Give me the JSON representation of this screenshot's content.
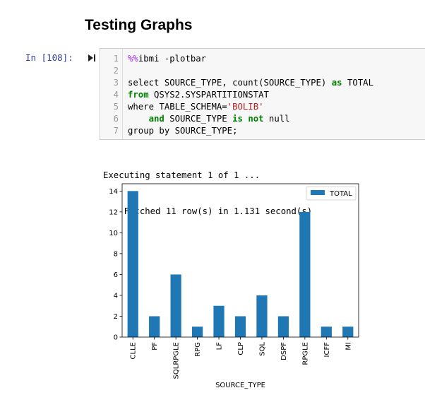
{
  "notebook": {
    "heading": "Testing Graphs",
    "prompt": "In [108]:",
    "code_lines": [
      {
        "num": "1",
        "parts": [
          {
            "t": "%%",
            "c": "magic"
          },
          {
            "t": "ibmi -plotbar",
            "c": ""
          }
        ]
      },
      {
        "num": "2",
        "parts": []
      },
      {
        "num": "3",
        "parts": [
          {
            "t": "select SOURCE_TYPE, count(SOURCE_TYPE) ",
            "c": ""
          },
          {
            "t": "as",
            "c": "kw"
          },
          {
            "t": " TOTAL",
            "c": ""
          }
        ]
      },
      {
        "num": "4",
        "parts": [
          {
            "t": "from",
            "c": "kw"
          },
          {
            "t": " QSYS2.SYSPARTITIONSTAT",
            "c": ""
          }
        ]
      },
      {
        "num": "5",
        "parts": [
          {
            "t": "where TABLE_SCHEMA=",
            "c": ""
          },
          {
            "t": "'BOLIB'",
            "c": "str"
          }
        ]
      },
      {
        "num": "6",
        "parts": [
          {
            "t": "    ",
            "c": ""
          },
          {
            "t": "and",
            "c": "kw"
          },
          {
            "t": " SOURCE_TYPE ",
            "c": ""
          },
          {
            "t": "is",
            "c": "kw"
          },
          {
            "t": " ",
            "c": ""
          },
          {
            "t": "not",
            "c": "kw"
          },
          {
            "t": " null",
            "c": ""
          }
        ]
      },
      {
        "num": "7",
        "parts": [
          {
            "t": "group by SOURCE_TYPE;",
            "c": ""
          }
        ]
      }
    ],
    "output_lines": [
      "Executing statement 1 of 1 ...",
      "    Fetched 11 row(s) in 1.131 second(s)"
    ]
  },
  "chart_data": {
    "type": "bar",
    "categories": [
      "CLLE",
      "PF",
      "SQLRPGLE",
      "RPG",
      "LF",
      "CLP",
      "SQL",
      "DSPF",
      "RPGLE",
      "ICFF",
      "MI"
    ],
    "series": [
      {
        "name": "TOTAL",
        "values": [
          14,
          2,
          6,
          1,
          3,
          2,
          4,
          2,
          12,
          1,
          1
        ]
      }
    ],
    "xlabel": "SOURCE_TYPE",
    "ylabel": "",
    "ylim": [
      0,
      14.7
    ],
    "yticks": [
      0,
      2,
      4,
      6,
      8,
      10,
      12,
      14
    ],
    "legend": "top-right",
    "grid": false,
    "bar_color": "#1f77b4"
  }
}
